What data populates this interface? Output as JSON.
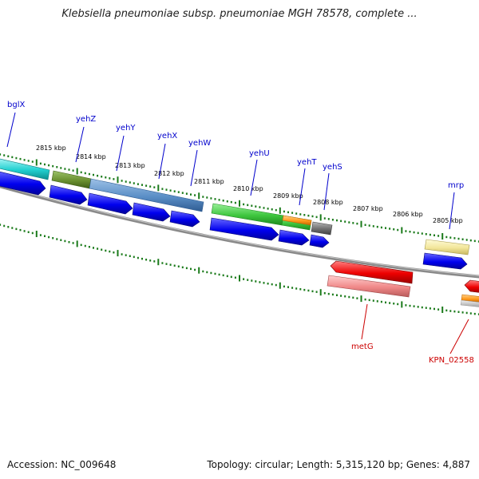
{
  "title": "Klebsiella pneumoniae subsp. pneumoniae MGH 78578, complete ...",
  "footer": {
    "accession": "Accession: NC_009648",
    "summary": "Topology: circular; Length: 5,315,120 bp; Genes: 4,887"
  },
  "colors": {
    "backbone": "#808080",
    "forward_tick": "#1a7a1a",
    "label_forward": "#0000cc",
    "label_reverse": "#cc0000",
    "cds_forward": "#0000ee",
    "cds_reverse": "#ee0000"
  },
  "scale": {
    "tick_labels": [
      "2815 kbp",
      "2814 kbp",
      "2813 kbp",
      "2812 kbp",
      "2811 kbp",
      "2810 kbp",
      "2809 kbp",
      "2808 kbp",
      "2807 kbp",
      "2806 kbp",
      "2805 kbp"
    ]
  },
  "genes_forward": [
    {
      "name": "bglX",
      "label": "bglX"
    },
    {
      "name": "yehZ",
      "label": "yehZ"
    },
    {
      "name": "yehY",
      "label": "yehY"
    },
    {
      "name": "yehX",
      "label": "yehX"
    },
    {
      "name": "yehW",
      "label": "yehW"
    },
    {
      "name": "yehU",
      "label": "yehU"
    },
    {
      "name": "yehT",
      "label": "yehT"
    },
    {
      "name": "yehS",
      "label": "yehS"
    },
    {
      "name": "mrp",
      "label": "mrp"
    }
  ],
  "genes_reverse": [
    {
      "name": "metG",
      "label": "metG"
    },
    {
      "name": "KPN_02558",
      "label": "KPN_02558"
    }
  ]
}
